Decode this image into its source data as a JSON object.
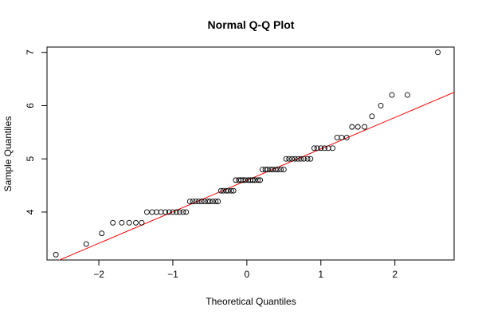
{
  "chart_data": {
    "type": "scatter",
    "title": "Normal Q-Q Plot",
    "xlabel": "Theoretical Quantiles",
    "ylabel": "Sample Quantiles",
    "xlim": [
      -2.7,
      2.8
    ],
    "ylim": [
      3.1,
      7.1
    ],
    "x_ticks": [
      -2,
      -1,
      0,
      1,
      2
    ],
    "x_tick_labels": [
      "−2",
      "−1",
      "0",
      "1",
      "2"
    ],
    "y_ticks": [
      4,
      5,
      6,
      7
    ],
    "y_tick_labels": [
      "4",
      "5",
      "6",
      "7"
    ],
    "grid": false,
    "reference_line": {
      "color": "#ff0000",
      "points": [
        [
          -2.7,
          3.0
        ],
        [
          2.8,
          6.25
        ]
      ]
    },
    "points": [
      [
        -2.58,
        3.2
      ],
      [
        -2.17,
        3.4
      ],
      [
        -1.96,
        3.6
      ],
      [
        -1.81,
        3.8
      ],
      [
        -1.69,
        3.8
      ],
      [
        -1.59,
        3.8
      ],
      [
        -1.5,
        3.8
      ],
      [
        -1.42,
        3.8
      ],
      [
        -1.35,
        4.0
      ],
      [
        -1.28,
        4.0
      ],
      [
        -1.22,
        4.0
      ],
      [
        -1.16,
        4.0
      ],
      [
        -1.1,
        4.0
      ],
      [
        -1.05,
        4.0
      ],
      [
        -1.0,
        4.0
      ],
      [
        -0.95,
        4.0
      ],
      [
        -0.91,
        4.0
      ],
      [
        -0.86,
        4.0
      ],
      [
        -0.82,
        4.0
      ],
      [
        -0.77,
        4.2
      ],
      [
        -0.73,
        4.2
      ],
      [
        -0.69,
        4.2
      ],
      [
        -0.65,
        4.2
      ],
      [
        -0.61,
        4.2
      ],
      [
        -0.57,
        4.2
      ],
      [
        -0.53,
        4.2
      ],
      [
        -0.5,
        4.2
      ],
      [
        -0.46,
        4.2
      ],
      [
        -0.42,
        4.2
      ],
      [
        -0.39,
        4.2
      ],
      [
        -0.35,
        4.4
      ],
      [
        -0.32,
        4.4
      ],
      [
        -0.28,
        4.4
      ],
      [
        -0.25,
        4.4
      ],
      [
        -0.21,
        4.4
      ],
      [
        -0.18,
        4.4
      ],
      [
        -0.15,
        4.6
      ],
      [
        -0.11,
        4.6
      ],
      [
        -0.08,
        4.6
      ],
      [
        -0.05,
        4.6
      ],
      [
        -0.02,
        4.6
      ],
      [
        0.02,
        4.6
      ],
      [
        0.05,
        4.6
      ],
      [
        0.08,
        4.6
      ],
      [
        0.11,
        4.6
      ],
      [
        0.15,
        4.6
      ],
      [
        0.18,
        4.6
      ],
      [
        0.21,
        4.8
      ],
      [
        0.25,
        4.8
      ],
      [
        0.28,
        4.8
      ],
      [
        0.32,
        4.8
      ],
      [
        0.35,
        4.8
      ],
      [
        0.39,
        4.8
      ],
      [
        0.42,
        4.8
      ],
      [
        0.46,
        4.8
      ],
      [
        0.5,
        4.8
      ],
      [
        0.53,
        5.0
      ],
      [
        0.57,
        5.0
      ],
      [
        0.61,
        5.0
      ],
      [
        0.65,
        5.0
      ],
      [
        0.69,
        5.0
      ],
      [
        0.73,
        5.0
      ],
      [
        0.77,
        5.0
      ],
      [
        0.82,
        5.0
      ],
      [
        0.86,
        5.0
      ],
      [
        0.91,
        5.2
      ],
      [
        0.95,
        5.2
      ],
      [
        1.0,
        5.2
      ],
      [
        1.05,
        5.2
      ],
      [
        1.1,
        5.2
      ],
      [
        1.16,
        5.2
      ],
      [
        1.22,
        5.4
      ],
      [
        1.28,
        5.4
      ],
      [
        1.35,
        5.4
      ],
      [
        1.42,
        5.6
      ],
      [
        1.5,
        5.6
      ],
      [
        1.59,
        5.6
      ],
      [
        1.69,
        5.8
      ],
      [
        1.81,
        6.0
      ],
      [
        1.96,
        6.2
      ],
      [
        2.17,
        6.2
      ],
      [
        2.58,
        7.0
      ]
    ]
  }
}
